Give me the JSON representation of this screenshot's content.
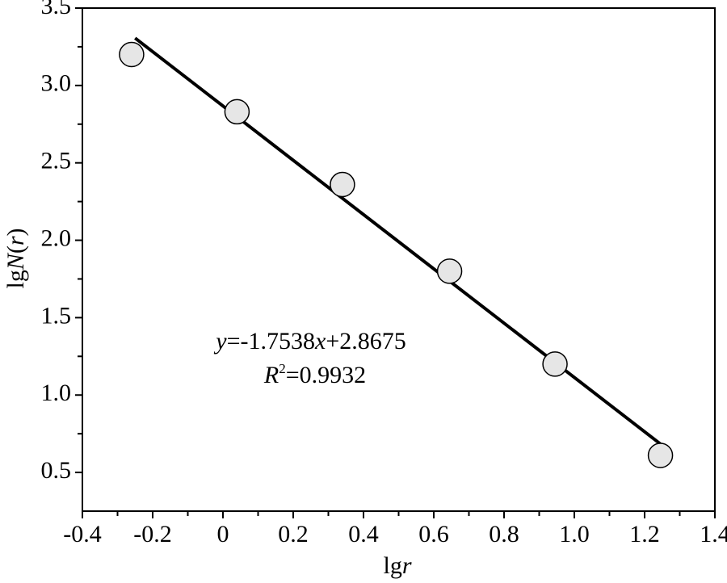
{
  "chart_data": {
    "type": "scatter",
    "xlabel": [
      "lg",
      "r"
    ],
    "ylabel": [
      "lg",
      "N",
      "(",
      "r",
      ")"
    ],
    "x": [
      -0.26,
      0.04,
      0.34,
      0.645,
      0.945,
      1.245
    ],
    "values": [
      3.2,
      2.83,
      2.36,
      1.8,
      1.2,
      0.61
    ],
    "color": "#e6e6e6",
    "fit_line": {
      "x": [
        -0.25,
        1.245
      ],
      "values": [
        3.306,
        0.684
      ]
    },
    "annotations": [
      [
        "y",
        "=-1.7538",
        "x",
        "+2.8675"
      ],
      [
        "R",
        "2",
        "=0.9932"
      ]
    ],
    "xlim": [
      -0.4,
      1.4
    ],
    "ylim": [
      0.25,
      3.5
    ],
    "xticks": [
      -0.4,
      -0.2,
      0,
      0.2,
      0.4,
      0.6,
      0.8,
      {
        "value": 1,
        "label": "1.0"
      },
      1.2,
      1.4
    ],
    "yticks": [
      0.5,
      {
        "value": 1,
        "label": "1.0"
      },
      1.5,
      {
        "value": 2,
        "label": "2.0"
      },
      2.5,
      {
        "value": 3,
        "label": "3.0"
      },
      3.5
    ],
    "xminorticks": [
      -0.3,
      -0.1,
      0.1,
      0.3,
      0.5,
      0.7,
      0.9,
      1.1,
      1.3
    ],
    "yminorticks": [
      0.75,
      1.25,
      1.75,
      2.25,
      2.75,
      3.25
    ]
  }
}
